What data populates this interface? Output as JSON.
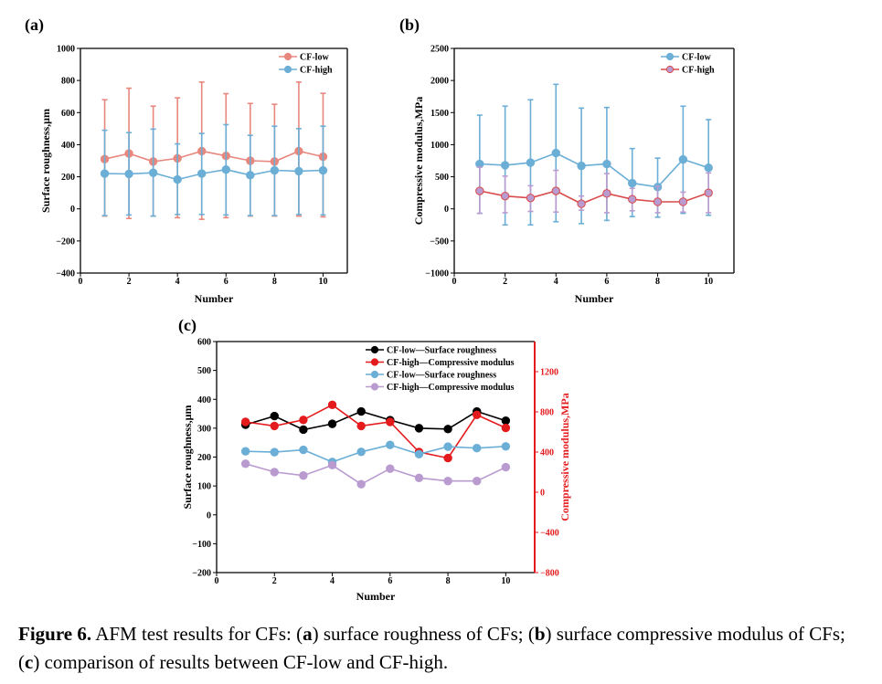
{
  "chart_data": [
    {
      "type": "line",
      "panel_label": "(a)",
      "xlabel": "Number",
      "ylabel": "Surface roughness,μm",
      "xlim": [
        0,
        11
      ],
      "ylim": [
        -400,
        1000
      ],
      "xticks": [
        0,
        2,
        4,
        6,
        8,
        10
      ],
      "yticks": [
        -400,
        -200,
        0,
        200,
        400,
        600,
        800,
        1000
      ],
      "legend_position": "top-right",
      "x": [
        1,
        2,
        3,
        4,
        5,
        6,
        7,
        8,
        9,
        10
      ],
      "series": [
        {
          "name": "CF-low",
          "color": "#e8877e",
          "values": [
            310,
            345,
            295,
            315,
            360,
            330,
            300,
            295,
            360,
            325
          ],
          "err_upper": [
            680,
            752,
            640,
            692,
            790,
            718,
            657,
            652,
            790,
            720
          ],
          "err_lower": [
            -45,
            -60,
            -45,
            -55,
            -65,
            -55,
            -45,
            -45,
            -45,
            -50
          ]
        },
        {
          "name": "CF-high",
          "color": "#6baed6",
          "values": [
            220,
            218,
            225,
            183,
            220,
            245,
            210,
            240,
            235,
            240
          ],
          "err_upper": [
            490,
            475,
            497,
            405,
            470,
            525,
            458,
            515,
            500,
            515
          ],
          "err_lower": [
            -42,
            -38,
            -45,
            -35,
            -35,
            -38,
            -42,
            -42,
            -35,
            -38
          ]
        }
      ]
    },
    {
      "type": "line",
      "panel_label": "(b)",
      "xlabel": "Number",
      "ylabel": "Compressive modulus,MPa",
      "xlim": [
        0,
        11
      ],
      "ylim": [
        -1000,
        2500
      ],
      "xticks": [
        0,
        2,
        4,
        6,
        8,
        10
      ],
      "yticks": [
        -1000,
        -500,
        0,
        500,
        1000,
        1500,
        2000,
        2500
      ],
      "legend_position": "top-right",
      "x": [
        1,
        2,
        3,
        4,
        5,
        6,
        7,
        8,
        9,
        10
      ],
      "series": [
        {
          "name": "CF-low",
          "color": "#6baed6",
          "values": [
            700,
            680,
            720,
            870,
            670,
            700,
            400,
            340,
            770,
            640
          ],
          "err_upper": [
            1460,
            1600,
            1700,
            1940,
            1570,
            1580,
            940,
            790,
            1600,
            1390
          ],
          "err_lower": [
            -70,
            -250,
            -250,
            -200,
            -230,
            -180,
            -120,
            -130,
            -70,
            -100
          ]
        },
        {
          "name": "CF-high",
          "color": "#b99bd0",
          "values": [
            280,
            200,
            170,
            280,
            80,
            240,
            150,
            110,
            110,
            250
          ],
          "err_upper": [
            650,
            510,
            360,
            600,
            200,
            550,
            320,
            350,
            260,
            560
          ],
          "err_lower": [
            -70,
            -60,
            -40,
            -50,
            -20,
            -60,
            -30,
            -60,
            -50,
            -60
          ]
        }
      ],
      "series_marker_edge": [
        "#6baed6",
        "#d94a4a"
      ]
    },
    {
      "type": "line",
      "panel_label": "(c)",
      "xlabel": "Number",
      "ylabel": "Surface roughness,μm",
      "y2label": "Compressive modulus,MPa",
      "xlim": [
        0,
        11
      ],
      "ylim": [
        -200,
        600
      ],
      "y2lim": [
        -800,
        1500
      ],
      "xticks": [
        0,
        2,
        4,
        6,
        8,
        10
      ],
      "yticks": [
        -200,
        -100,
        0,
        100,
        200,
        300,
        400,
        500,
        600
      ],
      "y2ticks": [
        -800,
        -400,
        0,
        400,
        800,
        1200
      ],
      "legend_position": "top-right",
      "x": [
        1,
        2,
        3,
        4,
        5,
        6,
        7,
        8,
        9,
        10
      ],
      "series": [
        {
          "name": "CF-low—Surface roughness",
          "color": "#000000",
          "axis": "left",
          "values": [
            312,
            342,
            295,
            315,
            358,
            328,
            300,
            297,
            358,
            326
          ]
        },
        {
          "name": "CF-high—Compressive modulus",
          "color": "#e41a1c",
          "axis": "right",
          "values": [
            700,
            660,
            720,
            870,
            660,
            700,
            400,
            340,
            770,
            640
          ]
        },
        {
          "name": "CF-low—Surface roughness",
          "color": "#6baed6",
          "axis": "left",
          "values": [
            220,
            217,
            225,
            183,
            218,
            242,
            210,
            236,
            231,
            237
          ]
        },
        {
          "name": "CF-high—Compressive modulus",
          "color": "#b99bd0",
          "axis": "left",
          "values": [
            177,
            148,
            136,
            172,
            106,
            160,
            128,
            117,
            117,
            165
          ]
        }
      ]
    }
  ],
  "caption": {
    "label": "Figure 6.",
    "text_1": " AFM test results for CFs: (",
    "a": "a",
    "text_2": ") surface roughness of CFs; (",
    "b": "b",
    "text_3": ") surface compressive modulus of CFs; (",
    "c": "c",
    "text_4": ") comparison of results between CF-low and CF-high."
  }
}
